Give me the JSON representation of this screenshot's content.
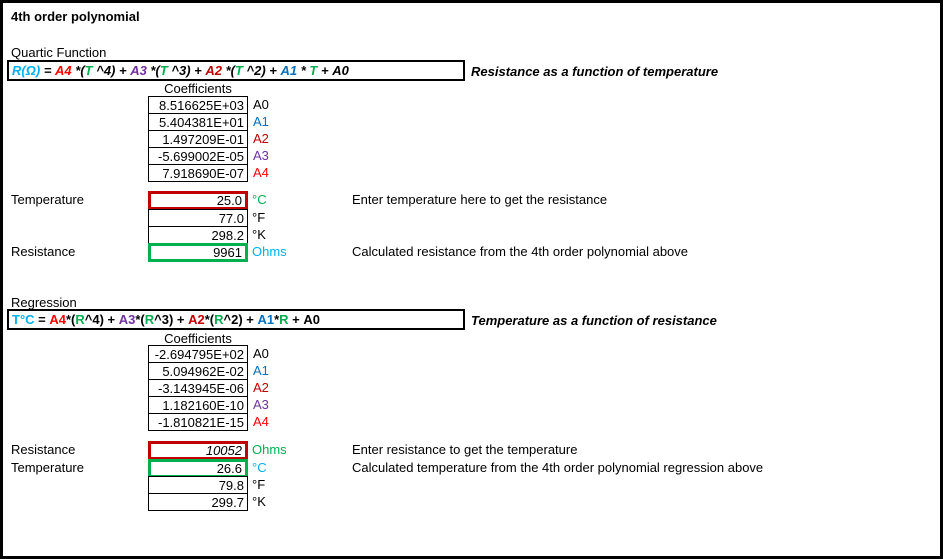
{
  "palette": {
    "black": "#000000",
    "red": "#FF0000",
    "dark_red": "#C00000",
    "blue": "#0070C0",
    "purple": "#7030A0",
    "green": "#00B050",
    "cyan": "#00B0F0"
  },
  "title": "4th order polynomial",
  "quartic": {
    "section_label": "Quartic Function",
    "formula_segments": [
      {
        "text": "R(Ω)",
        "color": "cyan"
      },
      {
        "text": " = ",
        "color": "black"
      },
      {
        "text": "A4",
        "color": "red"
      },
      {
        "text": " *(",
        "color": "black"
      },
      {
        "text": "T",
        "color": "green"
      },
      {
        "text": " ^4) + ",
        "color": "black"
      },
      {
        "text": "A3",
        "color": "purple"
      },
      {
        "text": " *(",
        "color": "black"
      },
      {
        "text": "T",
        "color": "green"
      },
      {
        "text": " ^3) + ",
        "color": "black"
      },
      {
        "text": "A2",
        "color": "dark_red"
      },
      {
        "text": " *(",
        "color": "black"
      },
      {
        "text": "T",
        "color": "green"
      },
      {
        "text": " ^2) + ",
        "color": "black"
      },
      {
        "text": "A1",
        "color": "blue"
      },
      {
        "text": " * ",
        "color": "black"
      },
      {
        "text": "T",
        "color": "green"
      },
      {
        "text": " + ",
        "color": "black"
      },
      {
        "text": "A0",
        "color": "black"
      }
    ],
    "side_note": "Resistance as a function of temperature",
    "coefficients_header": "Coefficients",
    "coefficients": [
      {
        "value": "8.516625E+03",
        "label": "A0",
        "color": "black"
      },
      {
        "value": "5.404381E+01",
        "label": "A1",
        "color": "blue"
      },
      {
        "value": "1.497209E-01",
        "label": "A2",
        "color": "dark_red"
      },
      {
        "value": "-5.699002E-05",
        "label": "A3",
        "color": "purple"
      },
      {
        "value": "7.918690E-07",
        "label": "A4",
        "color": "red"
      }
    ],
    "value_rows": [
      {
        "label": "Temperature",
        "value": "25.0",
        "unit": "°C",
        "unit_color": "green",
        "box": "input",
        "italic": false,
        "desc": "Enter temperature here to get the resistance"
      },
      {
        "label": "",
        "value": "77.0",
        "unit": "°F",
        "unit_color": "black",
        "box": "plain",
        "italic": false,
        "desc": ""
      },
      {
        "label": "",
        "value": "298.2",
        "unit": "°K",
        "unit_color": "black",
        "box": "plain",
        "italic": false,
        "desc": ""
      },
      {
        "label": "Resistance",
        "value": "9961",
        "unit": "Ohms",
        "unit_color": "cyan",
        "box": "output",
        "italic": false,
        "desc": "Calculated resistance from the 4th order polynomial above"
      }
    ]
  },
  "regression": {
    "section_label": "Regression",
    "formula_segments": [
      {
        "text": "T°C",
        "color": "cyan"
      },
      {
        "text": " = ",
        "color": "black"
      },
      {
        "text": "A4",
        "color": "red"
      },
      {
        "text": "*(",
        "color": "black"
      },
      {
        "text": "R",
        "color": "green"
      },
      {
        "text": "^4) + ",
        "color": "black"
      },
      {
        "text": "A3",
        "color": "purple"
      },
      {
        "text": "*(",
        "color": "black"
      },
      {
        "text": "R",
        "color": "green"
      },
      {
        "text": "^3) + ",
        "color": "black"
      },
      {
        "text": "A2",
        "color": "dark_red"
      },
      {
        "text": "*(",
        "color": "black"
      },
      {
        "text": "R",
        "color": "green"
      },
      {
        "text": "^2) + ",
        "color": "black"
      },
      {
        "text": "A1",
        "color": "blue"
      },
      {
        "text": "*",
        "color": "black"
      },
      {
        "text": "R",
        "color": "green"
      },
      {
        "text": " + ",
        "color": "black"
      },
      {
        "text": "A0",
        "color": "black"
      }
    ],
    "side_note": "Temperature as a function of resistance",
    "coefficients_header": "Coefficients",
    "coefficients": [
      {
        "value": "-2.694795E+02",
        "label": "A0",
        "color": "black"
      },
      {
        "value": "5.094962E-02",
        "label": "A1",
        "color": "blue"
      },
      {
        "value": "-3.143945E-06",
        "label": "A2",
        "color": "dark_red"
      },
      {
        "value": "1.182160E-10",
        "label": "A3",
        "color": "purple"
      },
      {
        "value": "-1.810821E-15",
        "label": "A4",
        "color": "red"
      }
    ],
    "value_rows": [
      {
        "label": "Resistance",
        "value": "10052",
        "unit": "Ohms",
        "unit_color": "green",
        "box": "input",
        "italic": true,
        "desc": "Enter resistance to get the temperature"
      },
      {
        "label": "Temperature",
        "value": "26.6",
        "unit": "°C",
        "unit_color": "cyan",
        "box": "output",
        "italic": false,
        "desc": "Calculated temperature from the 4th order polynomial regression above"
      },
      {
        "label": "",
        "value": "79.8",
        "unit": "°F",
        "unit_color": "black",
        "box": "plain",
        "italic": false,
        "desc": ""
      },
      {
        "label": "",
        "value": "299.7",
        "unit": "°K",
        "unit_color": "black",
        "box": "plain",
        "italic": false,
        "desc": ""
      }
    ]
  }
}
